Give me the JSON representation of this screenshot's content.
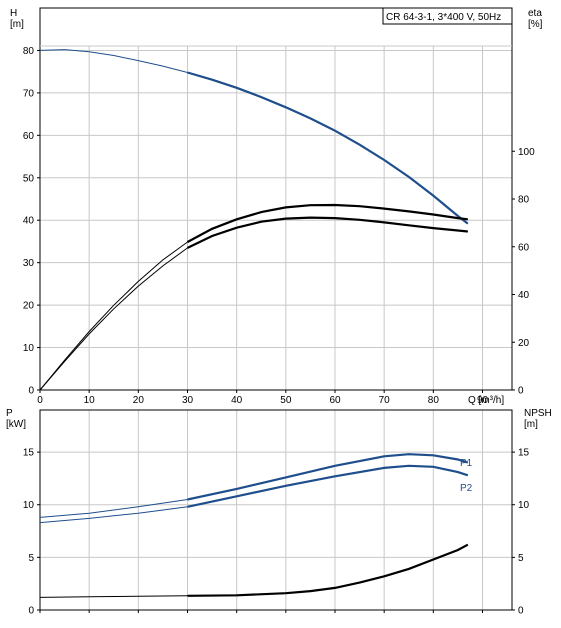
{
  "chart_data": [
    {
      "type": "line",
      "title": "CR 64-3-1, 3*400 V, 50Hz",
      "xlabel": "Q [m³/h]",
      "xlim": [
        0,
        96
      ],
      "xticks": [
        0,
        10,
        20,
        30,
        40,
        50,
        60,
        70,
        80,
        90
      ],
      "ylabel_left": "H\n[m]",
      "ylim_left": [
        0,
        90
      ],
      "yticks_left": [
        0,
        10,
        20,
        30,
        40,
        50,
        60,
        70,
        80
      ],
      "ylabel_right": "eta\n[%]",
      "ylim_right": [
        0,
        160
      ],
      "yticks_right": [
        0,
        20,
        40,
        60,
        80,
        100
      ],
      "grid": true,
      "series": [
        {
          "axis": "left",
          "color": "#1f4e8c",
          "x": [
            0,
            5,
            10,
            15,
            20,
            25,
            30,
            35,
            40,
            45,
            50,
            55,
            60,
            65,
            70,
            75,
            80,
            85,
            87
          ],
          "values": [
            80,
            80.2,
            79.7,
            78.8,
            77.6,
            76.3,
            74.8,
            73.1,
            71.2,
            69.0,
            66.6,
            64.0,
            61.1,
            57.8,
            54.2,
            50.2,
            45.8,
            41.0,
            39.2
          ]
        },
        {
          "axis": "right",
          "color": "#000000",
          "x": [
            0,
            5,
            10,
            15,
            20,
            25,
            30,
            35,
            40,
            45,
            50,
            55,
            60,
            65,
            70,
            75,
            80,
            85,
            87
          ],
          "values": [
            0,
            12.5,
            24.5,
            35.5,
            45.5,
            54.5,
            62,
            67.5,
            71.5,
            74.5,
            76.5,
            77.4,
            77.5,
            77,
            76,
            74.8,
            73.5,
            72,
            71.5
          ]
        },
        {
          "axis": "right",
          "color": "#000000",
          "x": [
            0,
            5,
            10,
            15,
            20,
            25,
            30,
            35,
            40,
            45,
            50,
            55,
            60,
            65,
            70,
            75,
            80,
            85,
            87
          ],
          "values": [
            0,
            12,
            23.5,
            34,
            43.5,
            52,
            59.5,
            64.5,
            68,
            70.5,
            71.8,
            72.2,
            72,
            71.3,
            70.2,
            69,
            67.8,
            66.8,
            66.4
          ]
        }
      ]
    },
    {
      "type": "line",
      "xlabel": "",
      "xlim": [
        0,
        96
      ],
      "xticks": [
        0,
        10,
        20,
        30,
        40,
        50,
        60,
        70,
        80,
        90
      ],
      "ylabel_left": "P\n[kW]",
      "ylim_left": [
        0,
        19
      ],
      "yticks_left": [
        0,
        5,
        10,
        15
      ],
      "ylabel_right": "NPSH\n[m]",
      "ylim_right": [
        0,
        19
      ],
      "yticks_right": [
        0,
        5,
        10,
        15
      ],
      "grid": true,
      "series": [
        {
          "name": "P1",
          "axis": "left",
          "color": "#1f4e8c",
          "x": [
            0,
            10,
            20,
            30,
            40,
            50,
            60,
            70,
            75,
            80,
            85,
            87
          ],
          "values": [
            8.8,
            9.2,
            9.8,
            10.5,
            11.5,
            12.6,
            13.7,
            14.6,
            14.8,
            14.7,
            14.3,
            14.0
          ]
        },
        {
          "name": "P2",
          "axis": "left",
          "color": "#1f4e8c",
          "x": [
            0,
            10,
            20,
            30,
            40,
            50,
            60,
            70,
            75,
            80,
            85,
            87
          ],
          "values": [
            8.3,
            8.7,
            9.2,
            9.8,
            10.8,
            11.8,
            12.7,
            13.5,
            13.7,
            13.6,
            13.1,
            12.8
          ]
        },
        {
          "axis": "right",
          "color": "#000000",
          "x": [
            0,
            10,
            20,
            30,
            40,
            50,
            55,
            60,
            65,
            70,
            75,
            80,
            85,
            87
          ],
          "values": [
            1.2,
            1.25,
            1.3,
            1.35,
            1.4,
            1.6,
            1.8,
            2.1,
            2.6,
            3.2,
            3.9,
            4.8,
            5.7,
            6.2
          ]
        }
      ]
    }
  ]
}
